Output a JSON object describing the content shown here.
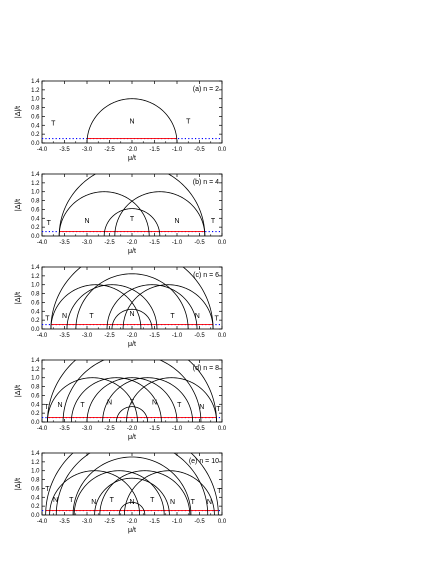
{
  "chart_data": [
    {
      "type": "line",
      "panel_label": "(a) n = 2",
      "xlabel": "μ/t",
      "ylabel": "|Δ|/t",
      "xlim": [
        -4.0,
        0.0
      ],
      "ylim": [
        0.0,
        1.4
      ],
      "xticks": [
        "-4.0",
        "-3.5",
        "-3.0",
        "-2.5",
        "-2.0",
        "-1.5",
        "-1.0",
        "-0.5",
        "0.0"
      ],
      "yticks": [
        "0.0",
        "0.2",
        "0.4",
        "0.6",
        "0.8",
        "1.0",
        "1.2",
        "1.4"
      ],
      "boundary_arcs": [
        {
          "center": -2.0,
          "radius": 1.0
        }
      ],
      "red_line": {
        "y": 0.1,
        "x_range": [
          -2.995,
          -1.005
        ]
      },
      "blue_dotted_line": {
        "y": 0.1,
        "x_range": [
          -4.0,
          0.0
        ]
      },
      "region_labels": [
        {
          "text": "T",
          "x": -3.75,
          "y": 0.45
        },
        {
          "text": "N",
          "x": -2.0,
          "y": 0.5
        },
        {
          "text": "T",
          "x": -0.75,
          "y": 0.5
        }
      ]
    },
    {
      "type": "line",
      "panel_label": "(b) n = 4",
      "xlabel": "μ/t",
      "ylabel": "|Δ|/t",
      "xlim": [
        -4.0,
        0.0
      ],
      "ylim": [
        0.0,
        1.4
      ],
      "xticks": [
        "-4.0",
        "-3.5",
        "-3.0",
        "-2.5",
        "-2.0",
        "-1.5",
        "-1.0",
        "-0.5",
        "0.0"
      ],
      "yticks": [
        "0.0",
        "0.2",
        "0.4",
        "0.6",
        "0.8",
        "1.0",
        "1.2",
        "1.4"
      ],
      "boundary_arcs": [
        {
          "center": -2.0,
          "radius": 1.618
        },
        {
          "center": -2.0,
          "radius": 0.618
        },
        {
          "center": -1.382,
          "radius": 1.0
        },
        {
          "center": -2.618,
          "radius": 1.0
        }
      ],
      "red_line": {
        "y": 0.1,
        "x_range": [
          -3.615,
          -0.385
        ]
      },
      "blue_dotted_line": {
        "y": 0.1,
        "x_range": [
          -4.0,
          0.0
        ]
      },
      "region_labels": [
        {
          "text": "T",
          "x": -3.85,
          "y": 0.3
        },
        {
          "text": "N",
          "x": -3.0,
          "y": 0.35
        },
        {
          "text": "T",
          "x": -2.0,
          "y": 0.4
        },
        {
          "text": "N",
          "x": -1.0,
          "y": 0.35
        },
        {
          "text": "T",
          "x": -0.2,
          "y": 0.35
        }
      ]
    },
    {
      "type": "line",
      "panel_label": "(c) n = 6",
      "xlabel": "μ/t",
      "ylabel": "|Δ|/t",
      "xlim": [
        -4.0,
        0.0
      ],
      "ylim": [
        0.0,
        1.4
      ],
      "xticks": [
        "-4.0",
        "-3.5",
        "-3.0",
        "-2.5",
        "-2.0",
        "-1.5",
        "-1.0",
        "-0.5",
        "0.0"
      ],
      "yticks": [
        "0.0",
        "0.2",
        "0.4",
        "0.6",
        "0.8",
        "1.0",
        "1.2",
        "1.4"
      ],
      "boundary_arcs": [
        {
          "center": -2.0,
          "radius": 1.802
        },
        {
          "center": -2.0,
          "radius": 1.247
        },
        {
          "center": -2.0,
          "radius": 0.445
        },
        {
          "center": -1.555,
          "radius": 1.0
        },
        {
          "center": -1.198,
          "radius": 1.0
        },
        {
          "center": -2.445,
          "radius": 1.0
        },
        {
          "center": -2.802,
          "radius": 1.0
        }
      ],
      "red_line": {
        "y": 0.1,
        "x_range": [
          -3.8,
          -0.2
        ]
      },
      "blue_dotted_line": {
        "y": 0.1,
        "x_range": [
          -4.0,
          0.0
        ]
      },
      "region_labels": [
        {
          "text": "T",
          "x": -3.88,
          "y": 0.25
        },
        {
          "text": "N",
          "x": -3.5,
          "y": 0.3
        },
        {
          "text": "T",
          "x": -2.9,
          "y": 0.3
        },
        {
          "text": "N",
          "x": -2.0,
          "y": 0.35
        },
        {
          "text": "T",
          "x": -1.1,
          "y": 0.3
        },
        {
          "text": "N",
          "x": -0.55,
          "y": 0.3
        },
        {
          "text": "T",
          "x": -0.12,
          "y": 0.25
        }
      ]
    },
    {
      "type": "line",
      "panel_label": "(d) n = 8",
      "xlabel": "μ/t",
      "ylabel": "|Δ|/t",
      "xlim": [
        -4.0,
        0.0
      ],
      "ylim": [
        0.0,
        1.4
      ],
      "xticks": [
        "-4.0",
        "-3.5",
        "-3.0",
        "-2.5",
        "-2.0",
        "-1.5",
        "-1.0",
        "-0.5",
        "0.0"
      ],
      "yticks": [
        "0.0",
        "0.2",
        "0.4",
        "0.6",
        "0.8",
        "1.0",
        "1.2",
        "1.4"
      ],
      "boundary_arcs": [
        {
          "center": -2.0,
          "radius": 1.879
        },
        {
          "center": -2.0,
          "radius": 1.532
        },
        {
          "center": -2.0,
          "radius": 1.0
        },
        {
          "center": -2.0,
          "radius": 0.347
        },
        {
          "center": -1.653,
          "radius": 1.0
        },
        {
          "center": -1.121,
          "radius": 1.0
        },
        {
          "center": -2.347,
          "radius": 1.0
        },
        {
          "center": -2.879,
          "radius": 1.0
        }
      ],
      "red_line": {
        "y": 0.1,
        "x_range": [
          -3.875,
          -0.125
        ]
      },
      "blue_dotted_line": {
        "y": 0.1,
        "x_range": [
          -4.0,
          0.0
        ]
      },
      "region_labels": [
        {
          "text": "T",
          "x": -3.9,
          "y": 0.35
        },
        {
          "text": "N",
          "x": -3.6,
          "y": 0.4
        },
        {
          "text": "T",
          "x": -3.1,
          "y": 0.4
        },
        {
          "text": "N",
          "x": -2.5,
          "y": 0.45
        },
        {
          "text": "T",
          "x": -2.0,
          "y": 0.45
        },
        {
          "text": "N",
          "x": -1.5,
          "y": 0.45
        },
        {
          "text": "T",
          "x": -0.95,
          "y": 0.4
        },
        {
          "text": "N",
          "x": -0.45,
          "y": 0.35
        },
        {
          "text": "T",
          "x": -0.08,
          "y": 0.3
        }
      ]
    },
    {
      "type": "line",
      "panel_label": "(e) n = 10",
      "xlabel": "μ/t",
      "ylabel": "|Δ|/t",
      "xlim": [
        -4.0,
        0.0
      ],
      "ylim": [
        0.0,
        1.4
      ],
      "xticks": [
        "-4.0",
        "-3.5",
        "-3.0",
        "-2.5",
        "-2.0",
        "-1.5",
        "-1.0",
        "-0.5",
        "0.0"
      ],
      "yticks": [
        "0.0",
        "0.2",
        "0.4",
        "0.6",
        "0.8",
        "1.0",
        "1.2",
        "1.4"
      ],
      "boundary_arcs": [
        {
          "center": -2.0,
          "radius": 1.919
        },
        {
          "center": -2.0,
          "radius": 1.683
        },
        {
          "center": -2.0,
          "radius": 1.31
        },
        {
          "center": -2.0,
          "radius": 0.831
        },
        {
          "center": -2.0,
          "radius": 0.285
        },
        {
          "center": -1.715,
          "radius": 1.0
        },
        {
          "center": -1.169,
          "radius": 1.0
        },
        {
          "center": -2.285,
          "radius": 1.0
        },
        {
          "center": -2.831,
          "radius": 1.0
        }
      ],
      "red_line": {
        "y": 0.1,
        "x_range": [
          -3.915,
          -0.085
        ]
      },
      "blue_dotted_line": {
        "y": 0.1,
        "x_range": [
          -4.0,
          0.0
        ]
      },
      "region_labels": [
        {
          "text": "T",
          "x": -3.88,
          "y": 0.6
        },
        {
          "text": "N",
          "x": -3.7,
          "y": 0.35
        },
        {
          "text": "T",
          "x": -3.35,
          "y": 0.35
        },
        {
          "text": "N",
          "x": -2.85,
          "y": 0.3
        },
        {
          "text": "T",
          "x": -2.45,
          "y": 0.35
        },
        {
          "text": "N",
          "x": -2.0,
          "y": 0.3
        },
        {
          "text": "T",
          "x": -1.55,
          "y": 0.35
        },
        {
          "text": "N",
          "x": -1.1,
          "y": 0.3
        },
        {
          "text": "T",
          "x": -0.65,
          "y": 0.3
        },
        {
          "text": "N",
          "x": -0.28,
          "y": 0.3
        },
        {
          "text": "T",
          "x": -0.06,
          "y": 0.55
        }
      ]
    }
  ],
  "colors": {
    "boundary": "#000000",
    "red_line": "#ff0000",
    "blue_dotted_line": "#0000ff"
  }
}
